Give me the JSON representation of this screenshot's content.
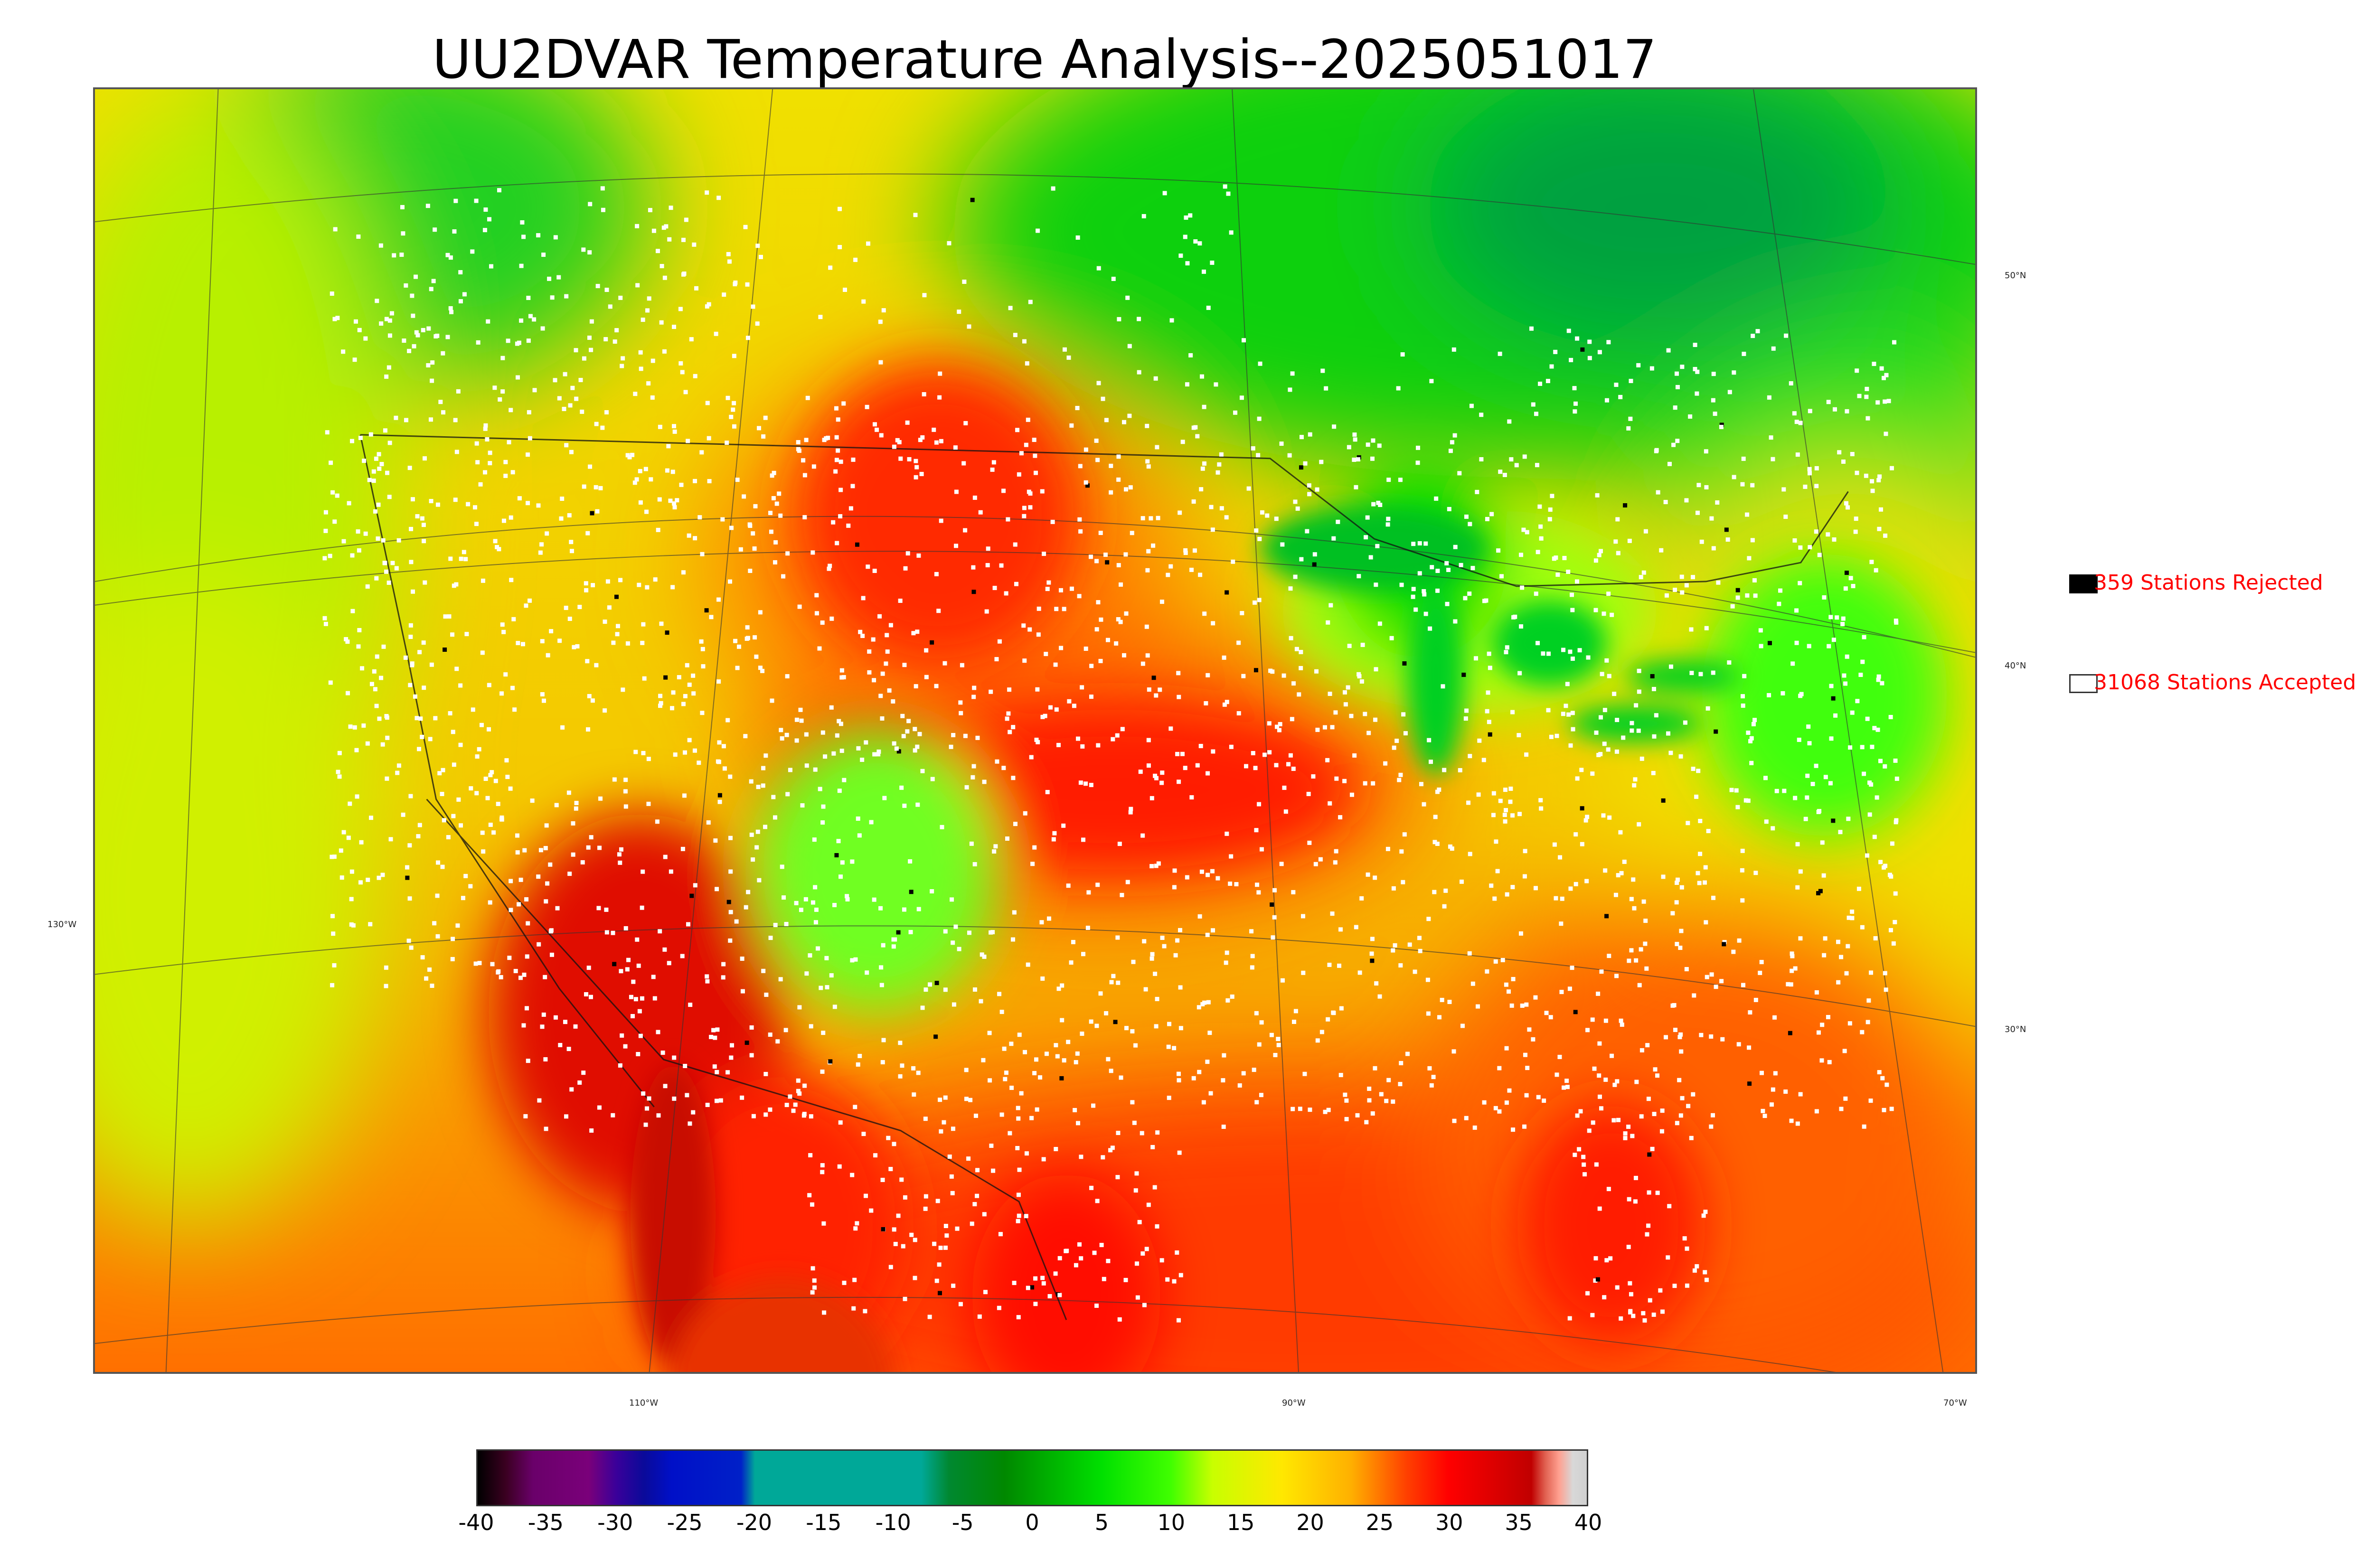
{
  "title": "UU2DVAR Temperature Analysis--2025051017",
  "map": {
    "graticule_labels": {
      "lat": [
        "50°N",
        "40°N",
        "30°N"
      ],
      "lon_left": "130°W",
      "lon_bottom": [
        "110°W",
        "90°W",
        "70°W"
      ]
    }
  },
  "legend": {
    "rejected": {
      "label": "359 Stations Rejected",
      "count": 359,
      "swatch_color": "#000000"
    },
    "accepted": {
      "label": "31068 Stations Accepted",
      "count": 31068,
      "swatch_color": "#ffffff"
    },
    "text_color": "#ff0000"
  },
  "colorbar": {
    "min": -40,
    "max": 40,
    "tick_labels": [
      "-40",
      "-35",
      "-30",
      "-25",
      "-20",
      "-15",
      "-10",
      "-5",
      "0",
      "5",
      "10",
      "15",
      "20",
      "25",
      "30",
      "35",
      "40"
    ],
    "stops": [
      {
        "v": -40,
        "c": "#000000"
      },
      {
        "v": -38,
        "c": "#3a0020"
      },
      {
        "v": -36,
        "c": "#6a006a"
      },
      {
        "v": -32,
        "c": "#7a007a"
      },
      {
        "v": -30,
        "c": "#3a009a"
      },
      {
        "v": -28,
        "c": "#0a0a9a"
      },
      {
        "v": -26,
        "c": "#0010c8"
      },
      {
        "v": -21,
        "c": "#0020c8"
      },
      {
        "v": -20,
        "c": "#00a898"
      },
      {
        "v": -8,
        "c": "#00a898"
      },
      {
        "v": -6,
        "c": "#008830"
      },
      {
        "v": -2,
        "c": "#008800"
      },
      {
        "v": 5,
        "c": "#00e000"
      },
      {
        "v": 10,
        "c": "#40ff00"
      },
      {
        "v": 13,
        "c": "#c8ff00"
      },
      {
        "v": 18,
        "c": "#ffe800"
      },
      {
        "v": 23,
        "c": "#ffb000"
      },
      {
        "v": 27,
        "c": "#ff4000"
      },
      {
        "v": 30,
        "c": "#ff0000"
      },
      {
        "v": 36,
        "c": "#c00000"
      },
      {
        "v": 37,
        "c": "#e06050"
      },
      {
        "v": 38,
        "c": "#ffa090"
      },
      {
        "v": 39,
        "c": "#d8d8d8"
      },
      {
        "v": 40,
        "c": "#d0d0d0"
      }
    ]
  }
}
